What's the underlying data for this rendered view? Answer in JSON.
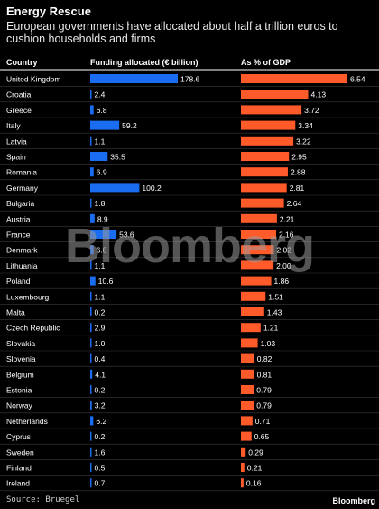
{
  "header": {
    "title": "Energy Rescue",
    "subtitle": "European governments have allocated about half a trillion euros to cushion households and firms"
  },
  "footer": {
    "source": "Source: Bruegel",
    "brand": "Bloomberg"
  },
  "watermark": "Bloomberg",
  "colors": {
    "background": "#000000",
    "funding_bar": "#1a6cf0",
    "gdp_bar": "#ff5a2a",
    "divider": "#ffffff",
    "row_rule": "#3a3a3a"
  },
  "chart_data": {
    "type": "bar",
    "column_headers": {
      "country": "Country",
      "funding": "Funding allocated (€ billion)",
      "gdp": "As % of GDP"
    },
    "categories": [
      "United Kingdom",
      "Croatia",
      "Greece",
      "Italy",
      "Latvia",
      "Spain",
      "Romania",
      "Germany",
      "Bulgaria",
      "Austria",
      "France",
      "Denmark",
      "Lithuania",
      "Poland",
      "Luxembourg",
      "Malta",
      "Czech Republic",
      "Slovakia",
      "Slovenia",
      "Belgium",
      "Estonia",
      "Norway",
      "Netherlands",
      "Cyprus",
      "Sweden",
      "Finland",
      "Ireland"
    ],
    "series": [
      {
        "name": "Funding allocated (€ billion)",
        "values": [
          178.6,
          2.4,
          6.8,
          59.2,
          1.1,
          35.5,
          6.9,
          100.2,
          1.8,
          8.9,
          53.6,
          6.8,
          1.1,
          10.6,
          1.1,
          0.2,
          2.9,
          1.0,
          0.4,
          4.1,
          0.2,
          3.2,
          6.2,
          0.2,
          1.6,
          0.5,
          0.7
        ],
        "labels": [
          "178.6",
          "2.4",
          "6.8",
          "59.2",
          "1.1",
          "35.5",
          "6.9",
          "100.2",
          "1.8",
          "8.9",
          "53.6",
          "6.8",
          "1.1",
          "10.6",
          "1.1",
          "0.2",
          "2.9",
          "1.0",
          "0.4",
          "4.1",
          "0.2",
          "3.2",
          "6.2",
          "0.2",
          "1.6",
          "0.5",
          "0.7"
        ]
      },
      {
        "name": "As % of GDP",
        "values": [
          6.54,
          4.13,
          3.72,
          3.34,
          3.22,
          2.95,
          2.88,
          2.81,
          2.64,
          2.21,
          2.16,
          2.02,
          2.0,
          1.86,
          1.51,
          1.43,
          1.21,
          1.03,
          0.82,
          0.81,
          0.79,
          0.79,
          0.71,
          0.65,
          0.29,
          0.21,
          0.16
        ],
        "labels": [
          "6.54",
          "4.13",
          "3.72",
          "3.34",
          "3.22",
          "2.95",
          "2.88",
          "2.81",
          "2.64",
          "2.21",
          "2.16",
          "2.02",
          "2.00",
          "1.86",
          "1.51",
          "1.43",
          "1.21",
          "1.03",
          "0.82",
          "0.81",
          "0.79",
          "0.79",
          "0.71",
          "0.65",
          "0.29",
          "0.21",
          "0.16"
        ]
      }
    ],
    "xlim_funding": [
      0,
      178.6
    ],
    "xlim_gdp": [
      0,
      6.54
    ],
    "grid": false,
    "legend": "none"
  }
}
